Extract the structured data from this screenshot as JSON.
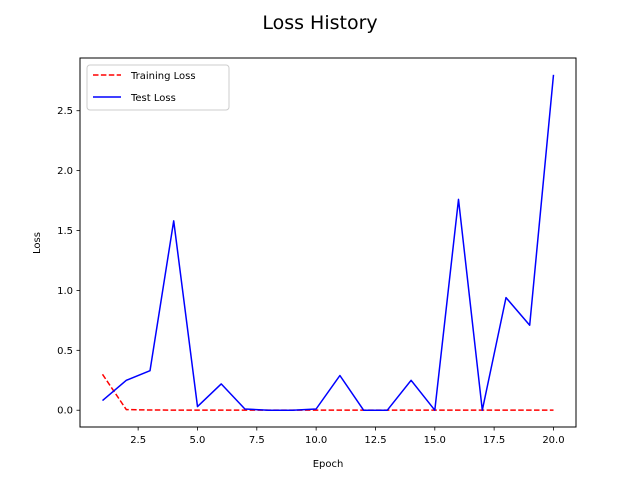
{
  "chart_data": {
    "type": "line",
    "title": "Loss History",
    "xlabel": "Epoch",
    "ylabel": "Loss",
    "xlim": [
      0.05,
      20.95
    ],
    "ylim": [
      -0.14,
      2.94
    ],
    "xticks": [
      2.5,
      5.0,
      7.5,
      10.0,
      12.5,
      15.0,
      17.5,
      20.0
    ],
    "xtick_labels": [
      "2.5",
      "5.0",
      "7.5",
      "10.0",
      "12.5",
      "15.0",
      "17.5",
      "20.0"
    ],
    "yticks": [
      0.0,
      0.5,
      1.0,
      1.5,
      2.0,
      2.5
    ],
    "ytick_labels": [
      "0.0",
      "0.5",
      "1.0",
      "1.5",
      "2.0",
      "2.5"
    ],
    "legend_position": "top-left",
    "grid": false,
    "x": [
      1,
      2,
      3,
      4,
      5,
      6,
      7,
      8,
      9,
      10,
      11,
      12,
      13,
      14,
      15,
      16,
      17,
      18,
      19,
      20
    ],
    "series": [
      {
        "name": "Training Loss",
        "color": "#ff0000",
        "dash": "dashed",
        "values": [
          0.3,
          0.005,
          0.002,
          0.001,
          0.001,
          0.001,
          0.001,
          0.001,
          0.001,
          0.001,
          0.001,
          0.001,
          0.001,
          0.001,
          0.001,
          0.001,
          0.001,
          0.001,
          0.001,
          0.001
        ]
      },
      {
        "name": "Test Loss",
        "color": "#0000ff",
        "dash": "solid",
        "values": [
          0.08,
          0.25,
          0.33,
          1.58,
          0.03,
          0.22,
          0.01,
          0.0,
          0.0,
          0.01,
          0.29,
          0.0,
          0.0,
          0.25,
          0.0,
          1.76,
          0.0,
          0.94,
          0.71,
          2.8
        ]
      }
    ]
  }
}
